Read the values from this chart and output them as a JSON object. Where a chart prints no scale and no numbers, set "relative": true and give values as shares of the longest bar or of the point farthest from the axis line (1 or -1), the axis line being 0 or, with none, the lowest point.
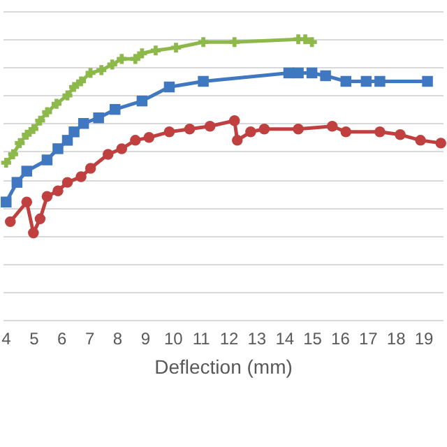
{
  "chart_data": {
    "type": "line",
    "xlabel": "Deflection (mm)",
    "relative": true,
    "grid": "y",
    "xlim": [
      3.9,
      19.7
    ],
    "xticks": [
      4,
      5,
      6,
      7,
      8,
      9,
      10,
      11,
      12,
      13,
      14,
      15,
      16,
      17,
      18,
      19
    ],
    "series": [
      {
        "color": "#8db84a",
        "marker": "cross",
        "x": [
          4.02,
          4.27,
          4.51,
          4.76,
          5,
          5.24,
          5.49,
          5.83,
          6.22,
          6.46,
          6.71,
          7.05,
          7.44,
          7.83,
          8.17,
          8.66,
          8.9,
          9.39,
          10.12,
          11.1,
          12.22,
          14.51,
          14.76,
          15
        ],
        "values": [
          0.56,
          0.59,
          0.63,
          0.66,
          0.68,
          0.71,
          0.74,
          0.77,
          0.8,
          0.83,
          0.85,
          0.88,
          0.89,
          0.91,
          0.93,
          0.93,
          0.95,
          0.96,
          0.97,
          0.99,
          0.99,
          1,
          1,
          0.99
        ]
      },
      {
        "color": "#3f78c0",
        "marker": "square",
        "x": [
          4.02,
          4.41,
          4.76,
          5.49,
          5.88,
          6.22,
          6.46,
          6.8,
          7.34,
          7.93,
          8.9,
          9.88,
          11.1,
          14.17,
          14.51,
          15,
          15.49,
          16.22,
          16.95,
          17.44,
          19.15
        ],
        "values": [
          0.42,
          0.49,
          0.53,
          0.57,
          0.61,
          0.64,
          0.67,
          0.7,
          0.72,
          0.75,
          0.78,
          0.83,
          0.85,
          0.88,
          0.88,
          0.88,
          0.87,
          0.85,
          0.85,
          0.85,
          0.85
        ]
      },
      {
        "color": "#c0403f",
        "marker": "circle",
        "x": [
          4.17,
          4.76,
          5,
          5.24,
          5.49,
          5.88,
          6.22,
          6.71,
          7.05,
          7.68,
          8.17,
          8.66,
          9.15,
          9.88,
          10.61,
          11.34,
          12.22,
          12.32,
          12.8,
          13.29,
          14.51,
          15.73,
          16.22,
          17.44,
          18.17,
          18.9,
          19.63
        ],
        "values": [
          0.35,
          0.42,
          0.31,
          0.36,
          0.44,
          0.46,
          0.49,
          0.51,
          0.54,
          0.59,
          0.61,
          0.64,
          0.65,
          0.67,
          0.68,
          0.69,
          0.71,
          0.64,
          0.67,
          0.68,
          0.68,
          0.69,
          0.67,
          0.67,
          0.66,
          0.64,
          0.63
        ]
      }
    ]
  }
}
